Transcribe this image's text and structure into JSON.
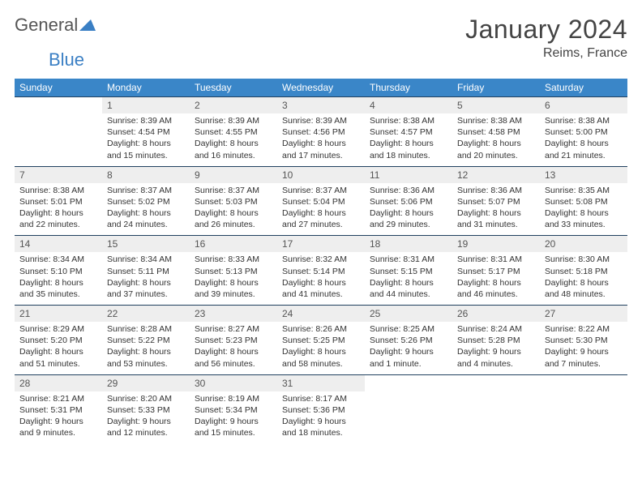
{
  "brand": {
    "word1": "General",
    "word2": "Blue"
  },
  "title": "January 2024",
  "location": "Reims, France",
  "colors": {
    "header_bg": "#3a86c8",
    "header_text": "#ffffff",
    "row_border": "#20415f",
    "daynum_bg": "#eeeeee",
    "logo_blue": "#3a7fc4",
    "text": "#333333"
  },
  "daynames": [
    "Sunday",
    "Monday",
    "Tuesday",
    "Wednesday",
    "Thursday",
    "Friday",
    "Saturday"
  ],
  "weeks": [
    [
      {
        "n": "",
        "sunrise": "",
        "sunset": "",
        "daylight": ""
      },
      {
        "n": "1",
        "sunrise": "8:39 AM",
        "sunset": "4:54 PM",
        "daylight": "8 hours and 15 minutes."
      },
      {
        "n": "2",
        "sunrise": "8:39 AM",
        "sunset": "4:55 PM",
        "daylight": "8 hours and 16 minutes."
      },
      {
        "n": "3",
        "sunrise": "8:39 AM",
        "sunset": "4:56 PM",
        "daylight": "8 hours and 17 minutes."
      },
      {
        "n": "4",
        "sunrise": "8:38 AM",
        "sunset": "4:57 PM",
        "daylight": "8 hours and 18 minutes."
      },
      {
        "n": "5",
        "sunrise": "8:38 AM",
        "sunset": "4:58 PM",
        "daylight": "8 hours and 20 minutes."
      },
      {
        "n": "6",
        "sunrise": "8:38 AM",
        "sunset": "5:00 PM",
        "daylight": "8 hours and 21 minutes."
      }
    ],
    [
      {
        "n": "7",
        "sunrise": "8:38 AM",
        "sunset": "5:01 PM",
        "daylight": "8 hours and 22 minutes."
      },
      {
        "n": "8",
        "sunrise": "8:37 AM",
        "sunset": "5:02 PM",
        "daylight": "8 hours and 24 minutes."
      },
      {
        "n": "9",
        "sunrise": "8:37 AM",
        "sunset": "5:03 PM",
        "daylight": "8 hours and 26 minutes."
      },
      {
        "n": "10",
        "sunrise": "8:37 AM",
        "sunset": "5:04 PM",
        "daylight": "8 hours and 27 minutes."
      },
      {
        "n": "11",
        "sunrise": "8:36 AM",
        "sunset": "5:06 PM",
        "daylight": "8 hours and 29 minutes."
      },
      {
        "n": "12",
        "sunrise": "8:36 AM",
        "sunset": "5:07 PM",
        "daylight": "8 hours and 31 minutes."
      },
      {
        "n": "13",
        "sunrise": "8:35 AM",
        "sunset": "5:08 PM",
        "daylight": "8 hours and 33 minutes."
      }
    ],
    [
      {
        "n": "14",
        "sunrise": "8:34 AM",
        "sunset": "5:10 PM",
        "daylight": "8 hours and 35 minutes."
      },
      {
        "n": "15",
        "sunrise": "8:34 AM",
        "sunset": "5:11 PM",
        "daylight": "8 hours and 37 minutes."
      },
      {
        "n": "16",
        "sunrise": "8:33 AM",
        "sunset": "5:13 PM",
        "daylight": "8 hours and 39 minutes."
      },
      {
        "n": "17",
        "sunrise": "8:32 AM",
        "sunset": "5:14 PM",
        "daylight": "8 hours and 41 minutes."
      },
      {
        "n": "18",
        "sunrise": "8:31 AM",
        "sunset": "5:15 PM",
        "daylight": "8 hours and 44 minutes."
      },
      {
        "n": "19",
        "sunrise": "8:31 AM",
        "sunset": "5:17 PM",
        "daylight": "8 hours and 46 minutes."
      },
      {
        "n": "20",
        "sunrise": "8:30 AM",
        "sunset": "5:18 PM",
        "daylight": "8 hours and 48 minutes."
      }
    ],
    [
      {
        "n": "21",
        "sunrise": "8:29 AM",
        "sunset": "5:20 PM",
        "daylight": "8 hours and 51 minutes."
      },
      {
        "n": "22",
        "sunrise": "8:28 AM",
        "sunset": "5:22 PM",
        "daylight": "8 hours and 53 minutes."
      },
      {
        "n": "23",
        "sunrise": "8:27 AM",
        "sunset": "5:23 PM",
        "daylight": "8 hours and 56 minutes."
      },
      {
        "n": "24",
        "sunrise": "8:26 AM",
        "sunset": "5:25 PM",
        "daylight": "8 hours and 58 minutes."
      },
      {
        "n": "25",
        "sunrise": "8:25 AM",
        "sunset": "5:26 PM",
        "daylight": "9 hours and 1 minute."
      },
      {
        "n": "26",
        "sunrise": "8:24 AM",
        "sunset": "5:28 PM",
        "daylight": "9 hours and 4 minutes."
      },
      {
        "n": "27",
        "sunrise": "8:22 AM",
        "sunset": "5:30 PM",
        "daylight": "9 hours and 7 minutes."
      }
    ],
    [
      {
        "n": "28",
        "sunrise": "8:21 AM",
        "sunset": "5:31 PM",
        "daylight": "9 hours and 9 minutes."
      },
      {
        "n": "29",
        "sunrise": "8:20 AM",
        "sunset": "5:33 PM",
        "daylight": "9 hours and 12 minutes."
      },
      {
        "n": "30",
        "sunrise": "8:19 AM",
        "sunset": "5:34 PM",
        "daylight": "9 hours and 15 minutes."
      },
      {
        "n": "31",
        "sunrise": "8:17 AM",
        "sunset": "5:36 PM",
        "daylight": "9 hours and 18 minutes."
      },
      {
        "n": "",
        "sunrise": "",
        "sunset": "",
        "daylight": ""
      },
      {
        "n": "",
        "sunrise": "",
        "sunset": "",
        "daylight": ""
      },
      {
        "n": "",
        "sunrise": "",
        "sunset": "",
        "daylight": ""
      }
    ]
  ],
  "labels": {
    "sunrise": "Sunrise:",
    "sunset": "Sunset:",
    "daylight": "Daylight:"
  }
}
